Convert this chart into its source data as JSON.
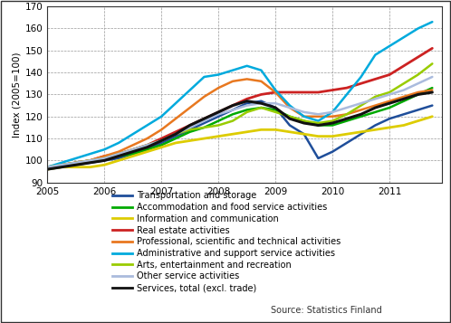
{
  "title": "",
  "ylabel": "Index (2005=100)",
  "ylim": [
    90,
    170
  ],
  "yticks": [
    90,
    100,
    110,
    120,
    130,
    140,
    150,
    160,
    170
  ],
  "xlim_start": 2005.0,
  "xlim_end": 2011.92,
  "background_color": "#ffffff",
  "grid_color": "#999999",
  "source_text": "Source: Statistics Finland",
  "series": {
    "Transportation and storage": {
      "color": "#1f4e9a",
      "lw": 1.8,
      "data": [
        [
          2005.0,
          96
        ],
        [
          2005.25,
          97
        ],
        [
          2005.5,
          98
        ],
        [
          2005.75,
          99
        ],
        [
          2006.0,
          100
        ],
        [
          2006.25,
          101
        ],
        [
          2006.5,
          103
        ],
        [
          2006.75,
          105
        ],
        [
          2007.0,
          108
        ],
        [
          2007.25,
          111
        ],
        [
          2007.5,
          114
        ],
        [
          2007.75,
          117
        ],
        [
          2008.0,
          120
        ],
        [
          2008.25,
          123
        ],
        [
          2008.5,
          126
        ],
        [
          2008.75,
          127
        ],
        [
          2009.0,
          124
        ],
        [
          2009.25,
          116
        ],
        [
          2009.5,
          112
        ],
        [
          2009.75,
          101
        ],
        [
          2010.0,
          104
        ],
        [
          2010.25,
          108
        ],
        [
          2010.5,
          112
        ],
        [
          2010.75,
          116
        ],
        [
          2011.0,
          119
        ],
        [
          2011.25,
          121
        ],
        [
          2011.5,
          123
        ],
        [
          2011.75,
          125
        ]
      ]
    },
    "Accommodation and food service activities": {
      "color": "#00aa00",
      "lw": 1.8,
      "data": [
        [
          2005.0,
          97
        ],
        [
          2005.25,
          98
        ],
        [
          2005.5,
          99
        ],
        [
          2005.75,
          100
        ],
        [
          2006.0,
          101
        ],
        [
          2006.25,
          102
        ],
        [
          2006.5,
          103
        ],
        [
          2006.75,
          105
        ],
        [
          2007.0,
          107
        ],
        [
          2007.25,
          110
        ],
        [
          2007.5,
          113
        ],
        [
          2007.75,
          115
        ],
        [
          2008.0,
          118
        ],
        [
          2008.25,
          121
        ],
        [
          2008.5,
          123
        ],
        [
          2008.75,
          124
        ],
        [
          2009.0,
          123
        ],
        [
          2009.25,
          120
        ],
        [
          2009.5,
          118
        ],
        [
          2009.75,
          116
        ],
        [
          2010.0,
          116
        ],
        [
          2010.25,
          118
        ],
        [
          2010.5,
          120
        ],
        [
          2010.75,
          122
        ],
        [
          2011.0,
          124
        ],
        [
          2011.25,
          127
        ],
        [
          2011.5,
          130
        ],
        [
          2011.75,
          133
        ]
      ]
    },
    "Information and communication": {
      "color": "#ddcc00",
      "lw": 2.0,
      "data": [
        [
          2005.0,
          96
        ],
        [
          2005.25,
          97
        ],
        [
          2005.5,
          97
        ],
        [
          2005.75,
          97
        ],
        [
          2006.0,
          98
        ],
        [
          2006.25,
          100
        ],
        [
          2006.5,
          102
        ],
        [
          2006.75,
          104
        ],
        [
          2007.0,
          106
        ],
        [
          2007.25,
          108
        ],
        [
          2007.5,
          109
        ],
        [
          2007.75,
          110
        ],
        [
          2008.0,
          111
        ],
        [
          2008.25,
          112
        ],
        [
          2008.5,
          113
        ],
        [
          2008.75,
          114
        ],
        [
          2009.0,
          114
        ],
        [
          2009.25,
          113
        ],
        [
          2009.5,
          112
        ],
        [
          2009.75,
          111
        ],
        [
          2010.0,
          111
        ],
        [
          2010.25,
          112
        ],
        [
          2010.5,
          113
        ],
        [
          2010.75,
          114
        ],
        [
          2011.0,
          115
        ],
        [
          2011.25,
          116
        ],
        [
          2011.5,
          118
        ],
        [
          2011.75,
          120
        ]
      ]
    },
    "Real estate activities": {
      "color": "#cc2222",
      "lw": 2.0,
      "data": [
        [
          2005.0,
          97
        ],
        [
          2005.25,
          98
        ],
        [
          2005.5,
          99
        ],
        [
          2005.75,
          100
        ],
        [
          2006.0,
          102
        ],
        [
          2006.25,
          103
        ],
        [
          2006.5,
          105
        ],
        [
          2006.75,
          107
        ],
        [
          2007.0,
          110
        ],
        [
          2007.25,
          113
        ],
        [
          2007.5,
          116
        ],
        [
          2007.75,
          119
        ],
        [
          2008.0,
          122
        ],
        [
          2008.25,
          125
        ],
        [
          2008.5,
          128
        ],
        [
          2008.75,
          130
        ],
        [
          2009.0,
          131
        ],
        [
          2009.25,
          131
        ],
        [
          2009.5,
          131
        ],
        [
          2009.75,
          131
        ],
        [
          2010.0,
          132
        ],
        [
          2010.25,
          133
        ],
        [
          2010.5,
          135
        ],
        [
          2010.75,
          137
        ],
        [
          2011.0,
          139
        ],
        [
          2011.25,
          143
        ],
        [
          2011.5,
          147
        ],
        [
          2011.75,
          151
        ]
      ]
    },
    "Professional, scientific and technical activities": {
      "color": "#e87820",
      "lw": 1.8,
      "data": [
        [
          2005.0,
          97
        ],
        [
          2005.25,
          98
        ],
        [
          2005.5,
          99
        ],
        [
          2005.75,
          100
        ],
        [
          2006.0,
          102
        ],
        [
          2006.25,
          104
        ],
        [
          2006.5,
          107
        ],
        [
          2006.75,
          110
        ],
        [
          2007.0,
          114
        ],
        [
          2007.25,
          119
        ],
        [
          2007.5,
          124
        ],
        [
          2007.75,
          129
        ],
        [
          2008.0,
          133
        ],
        [
          2008.25,
          136
        ],
        [
          2008.5,
          137
        ],
        [
          2008.75,
          136
        ],
        [
          2009.0,
          131
        ],
        [
          2009.25,
          124
        ],
        [
          2009.5,
          120
        ],
        [
          2009.75,
          120
        ],
        [
          2010.0,
          120
        ],
        [
          2010.25,
          121
        ],
        [
          2010.5,
          123
        ],
        [
          2010.75,
          125
        ],
        [
          2011.0,
          127
        ],
        [
          2011.25,
          129
        ],
        [
          2011.5,
          131
        ],
        [
          2011.75,
          132
        ]
      ]
    },
    "Administrative and support service activities": {
      "color": "#00aadd",
      "lw": 1.8,
      "data": [
        [
          2005.0,
          97
        ],
        [
          2005.25,
          99
        ],
        [
          2005.5,
          101
        ],
        [
          2005.75,
          103
        ],
        [
          2006.0,
          105
        ],
        [
          2006.25,
          108
        ],
        [
          2006.5,
          112
        ],
        [
          2006.75,
          116
        ],
        [
          2007.0,
          120
        ],
        [
          2007.25,
          126
        ],
        [
          2007.5,
          132
        ],
        [
          2007.75,
          138
        ],
        [
          2008.0,
          139
        ],
        [
          2008.25,
          141
        ],
        [
          2008.5,
          143
        ],
        [
          2008.75,
          141
        ],
        [
          2009.0,
          132
        ],
        [
          2009.25,
          125
        ],
        [
          2009.5,
          120
        ],
        [
          2009.75,
          118
        ],
        [
          2010.0,
          122
        ],
        [
          2010.25,
          130
        ],
        [
          2010.5,
          138
        ],
        [
          2010.75,
          148
        ],
        [
          2011.0,
          152
        ],
        [
          2011.25,
          156
        ],
        [
          2011.5,
          160
        ],
        [
          2011.75,
          163
        ]
      ]
    },
    "Arts, entertainment and recreation": {
      "color": "#99cc00",
      "lw": 1.8,
      "data": [
        [
          2005.0,
          97
        ],
        [
          2005.25,
          98
        ],
        [
          2005.5,
          99
        ],
        [
          2005.75,
          100
        ],
        [
          2006.0,
          101
        ],
        [
          2006.25,
          103
        ],
        [
          2006.5,
          105
        ],
        [
          2006.75,
          107
        ],
        [
          2007.0,
          109
        ],
        [
          2007.25,
          112
        ],
        [
          2007.5,
          114
        ],
        [
          2007.75,
          115
        ],
        [
          2008.0,
          116
        ],
        [
          2008.25,
          118
        ],
        [
          2008.5,
          122
        ],
        [
          2008.75,
          124
        ],
        [
          2009.0,
          122
        ],
        [
          2009.25,
          120
        ],
        [
          2009.5,
          118
        ],
        [
          2009.75,
          117
        ],
        [
          2010.0,
          118
        ],
        [
          2010.25,
          121
        ],
        [
          2010.5,
          125
        ],
        [
          2010.75,
          129
        ],
        [
          2011.0,
          131
        ],
        [
          2011.25,
          135
        ],
        [
          2011.5,
          139
        ],
        [
          2011.75,
          144
        ]
      ]
    },
    "Other service activities": {
      "color": "#aabbdd",
      "lw": 1.8,
      "data": [
        [
          2005.0,
          97
        ],
        [
          2005.25,
          98
        ],
        [
          2005.5,
          99
        ],
        [
          2005.75,
          100
        ],
        [
          2006.0,
          101
        ],
        [
          2006.25,
          103
        ],
        [
          2006.5,
          105
        ],
        [
          2006.75,
          107
        ],
        [
          2007.0,
          109
        ],
        [
          2007.25,
          112
        ],
        [
          2007.5,
          115
        ],
        [
          2007.75,
          118
        ],
        [
          2008.0,
          121
        ],
        [
          2008.25,
          123
        ],
        [
          2008.5,
          125
        ],
        [
          2008.75,
          126
        ],
        [
          2009.0,
          126
        ],
        [
          2009.25,
          124
        ],
        [
          2009.5,
          122
        ],
        [
          2009.75,
          121
        ],
        [
          2010.0,
          122
        ],
        [
          2010.25,
          124
        ],
        [
          2010.5,
          126
        ],
        [
          2010.75,
          128
        ],
        [
          2011.0,
          130
        ],
        [
          2011.25,
          132
        ],
        [
          2011.5,
          135
        ],
        [
          2011.75,
          138
        ]
      ]
    },
    "Services, total (excl. trade)": {
      "color": "#111111",
      "lw": 2.2,
      "data": [
        [
          2005.0,
          96
        ],
        [
          2005.25,
          97
        ],
        [
          2005.5,
          98
        ],
        [
          2005.75,
          99
        ],
        [
          2006.0,
          100
        ],
        [
          2006.25,
          102
        ],
        [
          2006.5,
          104
        ],
        [
          2006.75,
          106
        ],
        [
          2007.0,
          109
        ],
        [
          2007.25,
          112
        ],
        [
          2007.5,
          116
        ],
        [
          2007.75,
          119
        ],
        [
          2008.0,
          122
        ],
        [
          2008.25,
          125
        ],
        [
          2008.5,
          127
        ],
        [
          2008.75,
          126
        ],
        [
          2009.0,
          124
        ],
        [
          2009.25,
          119
        ],
        [
          2009.5,
          117
        ],
        [
          2009.75,
          116
        ],
        [
          2010.0,
          117
        ],
        [
          2010.25,
          119
        ],
        [
          2010.5,
          121
        ],
        [
          2010.75,
          124
        ],
        [
          2011.0,
          126
        ],
        [
          2011.25,
          128
        ],
        [
          2011.5,
          130
        ],
        [
          2011.75,
          131
        ]
      ]
    }
  },
  "legend_entries": [
    "Transportation and storage",
    "Accommodation and food service activities",
    "Information and communication",
    "Real estate activities",
    "Professional, scientific and technical activities",
    "Administrative and support service activities",
    "Arts, entertainment and recreation",
    "Other service activities",
    "Services, total (excl. trade)"
  ],
  "xticks": [
    2005,
    2006,
    2007,
    2008,
    2009,
    2010,
    2011
  ]
}
